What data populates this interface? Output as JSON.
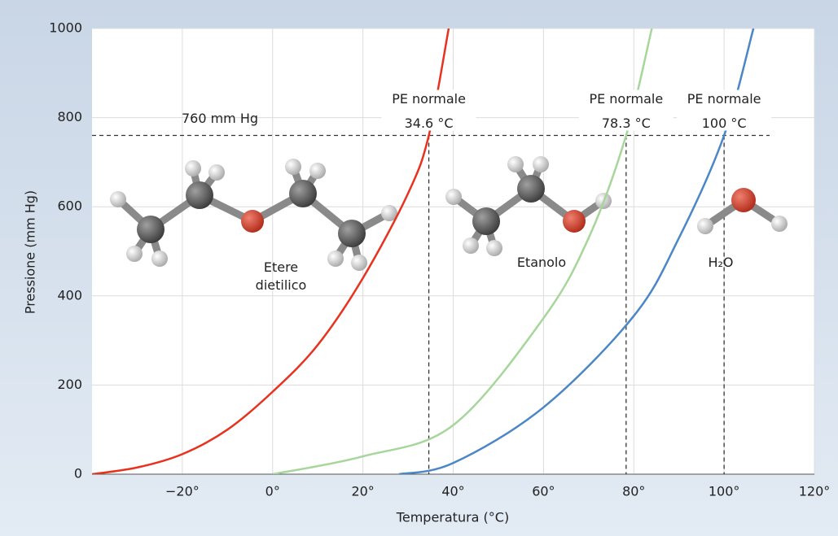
{
  "chart_data": {
    "type": "line",
    "xlabel": "Temperatura (°C)",
    "ylabel": "Pressione (mm Hg)",
    "xlim": [
      -40,
      120
    ],
    "ylim": [
      0,
      1000
    ],
    "xticks": [
      {
        "value": -20,
        "label": "−20°"
      },
      {
        "value": 0,
        "label": "0°"
      },
      {
        "value": 20,
        "label": "20°"
      },
      {
        "value": 40,
        "label": "40°"
      },
      {
        "value": 60,
        "label": "60°"
      },
      {
        "value": 80,
        "label": "80°"
      },
      {
        "value": 100,
        "label": "100°"
      },
      {
        "value": 120,
        "label": "120°"
      }
    ],
    "yticks": [
      0,
      200,
      400,
      600,
      800,
      1000
    ],
    "grid": true,
    "series": [
      {
        "name": "Etere dietilico",
        "color": "#e8321e",
        "x": [
          -40,
          -30,
          -20,
          -10,
          0,
          10,
          20,
          30,
          34.6,
          39
        ],
        "values": [
          0,
          15,
          45,
          100,
          185,
          290,
          440,
          630,
          760,
          1000
        ]
      },
      {
        "name": "Etanolo",
        "color": "#a6d69a",
        "x": [
          0,
          20,
          40,
          60,
          70,
          78.3,
          84
        ],
        "values": [
          0,
          40,
          110,
          350,
          530,
          760,
          1000
        ]
      },
      {
        "name": "H₂O",
        "color": "#4a86c8",
        "x": [
          28,
          40,
          60,
          80,
          90,
          100,
          106.5
        ],
        "values": [
          0,
          25,
          150,
          355,
          530,
          760,
          1000
        ]
      }
    ],
    "reference_line": {
      "y": 760,
      "label": "760 mm Hg"
    },
    "annotations": [
      {
        "x": 34.6,
        "title": "PE normale",
        "label": "34.6 °C"
      },
      {
        "x": 78.3,
        "title": "PE normale",
        "label": "78.3 °C"
      },
      {
        "x": 100,
        "title": "PE normale",
        "label": "100 °C"
      }
    ]
  }
}
